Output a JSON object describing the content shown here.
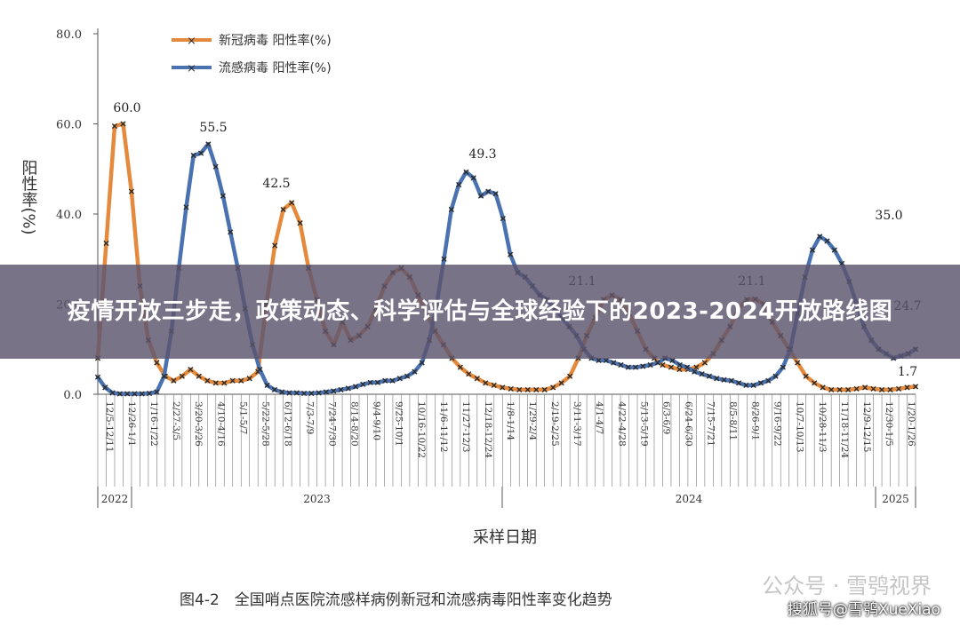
{
  "banner": {
    "title": "疫情开放三步走，政策动态、科学评估与全球经验下的2023-2024开放路线图"
  },
  "watermarks": {
    "wechat": "公众号 · 雪鸮视界",
    "sohu": "搜狐号@雪鸮XueXiao"
  },
  "colors": {
    "covid": "#e58a3c",
    "flu": "#4a72b0",
    "marker": "#2b2b2b",
    "axis": "#555555"
  },
  "chart_data": {
    "type": "line",
    "caption": "图4-2　全国哨点医院流感样病例新冠和流感病毒阳性率变化趋势",
    "xlabel": "采样日期",
    "ylabel": "阳性率(%)",
    "ylim": [
      0,
      80
    ],
    "yticks": [
      "0.0",
      "20.0",
      "40.0",
      "60.0",
      "80.0"
    ],
    "legend_position": "top-left",
    "x_tick_labels": [
      "12/5-12/11",
      "12/26-1/1",
      "1/16-1/22",
      "2/27-3/5",
      "3/20-3/26",
      "4/10-4/16",
      "5/1-5/7",
      "5/22-5/28",
      "6/12-6/18",
      "7/3-7/9",
      "7/24-7/30",
      "8/14-8/20",
      "9/4-9/10",
      "9/25-10/1",
      "10/16-10/22",
      "11/6-11/12",
      "11/27-12/3",
      "12/18-12/24",
      "1/8-1/14",
      "1/29-2/4",
      "2/19-2/25",
      "3/11-3/17",
      "4/1-4/7",
      "4/22-4/28",
      "5/13-5/19",
      "6/3-6/9",
      "6/24-6/30",
      "7/15-7/21",
      "8/5-8/11",
      "8/26-9/1",
      "9/16-9/22",
      "10/7-10/13",
      "10/28-11/3",
      "11/18-11/24",
      "12/9-12/15",
      "12/30-1/5",
      "1/20-1/26"
    ],
    "years": [
      "2022",
      "2023",
      "2024",
      "2025"
    ],
    "annotations": [
      "60.0",
      "55.5",
      "42.5",
      "49.3",
      "35.0",
      "1.7",
      "24.7",
      "21.1",
      "21.1"
    ],
    "series": [
      {
        "name": "新冠病毒 阳性率(%)",
        "values": [
          8,
          33.5,
          59.5,
          60,
          45,
          24,
          12,
          7,
          4,
          3,
          4,
          5.5,
          4,
          3,
          2.5,
          2.5,
          3,
          3,
          3.5,
          5,
          20,
          33,
          41,
          42.5,
          38,
          28,
          21,
          14,
          11,
          16,
          12,
          13,
          15,
          19,
          24,
          27,
          28,
          26,
          22,
          18,
          14,
          11,
          8,
          6,
          4.5,
          3.5,
          2.5,
          2,
          1.5,
          1.2,
          1,
          1,
          1,
          1,
          1.5,
          2.5,
          4,
          8,
          13,
          17,
          21,
          22,
          21,
          18,
          14,
          10,
          8,
          6.5,
          6,
          5.5,
          5.5,
          6,
          7,
          9,
          12,
          15,
          19,
          21,
          21.1,
          20,
          16,
          13,
          10,
          7,
          4,
          2.5,
          1.5,
          1,
          1,
          1,
          1.2,
          1.5,
          1.2,
          1,
          1,
          1.2,
          1.5,
          1.7
        ]
      },
      {
        "name": "流感病毒 阳性率(%)",
        "values": [
          3.8,
          1.5,
          0.3,
          0.1,
          0.1,
          0.1,
          0.1,
          0.2,
          0.5,
          4,
          14,
          28,
          41.5,
          53,
          53.5,
          55.5,
          50.5,
          44,
          36,
          28,
          19,
          11,
          5.5,
          2,
          1,
          0.5,
          0.3,
          0.3,
          0.2,
          0.2,
          0.3,
          0.5,
          0.7,
          1,
          1.3,
          1.7,
          2.2,
          2.6,
          2.6,
          3,
          3,
          3.5,
          4,
          5,
          7,
          12,
          20,
          30,
          41,
          46.5,
          49.3,
          48,
          44,
          45,
          44.5,
          39,
          31,
          27,
          26,
          24,
          22,
          21,
          19,
          17,
          15,
          13,
          10,
          8,
          7.5,
          7.5,
          7,
          6.5,
          6,
          6,
          6.2,
          6.5,
          7,
          8,
          7.5,
          6.5,
          6,
          5,
          4.5,
          4,
          3.5,
          3.2,
          3,
          2.5,
          2,
          2,
          2.5,
          3,
          4,
          6,
          10,
          18,
          26,
          32,
          35,
          34,
          32,
          29,
          25,
          20,
          15,
          12,
          10,
          9,
          8,
          8.5,
          9,
          10
        ]
      }
    ]
  }
}
